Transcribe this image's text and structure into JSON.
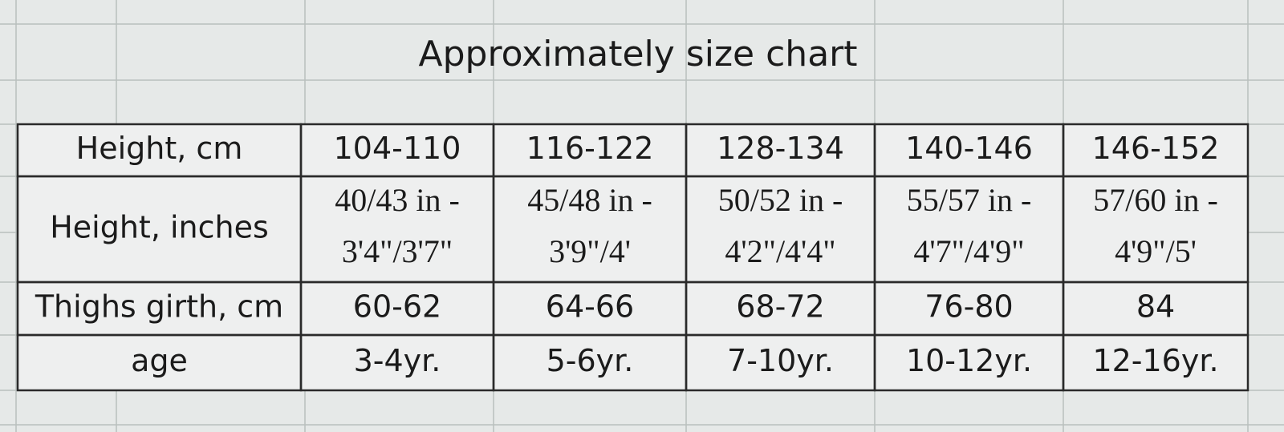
{
  "title": "Approximately size chart",
  "table": {
    "rows": [
      {
        "label": "Height, cm",
        "cells": [
          "104-110",
          "116-122",
          "128-134",
          "140-146",
          "146-152"
        ]
      },
      {
        "label": "Height, inches",
        "cells": [
          [
            "40/43 in -",
            "3'4\"/3'7\""
          ],
          [
            "45/48 in -",
            "3'9\"/4'"
          ],
          [
            "50/52 in -",
            "4'2\"/4'4\""
          ],
          [
            "55/57 in -",
            "4'7\"/4'9\""
          ],
          [
            "57/60 in -",
            "4'9\"/5'"
          ]
        ]
      },
      {
        "label": "Thighs girth, cm",
        "cells": [
          "60-62",
          "64-66",
          "68-72",
          "76-80",
          "84"
        ]
      },
      {
        "label": "age",
        "cells": [
          "3-4yr.",
          "5-6yr.",
          "7-10yr.",
          "10-12yr.",
          "12-16yr."
        ]
      }
    ]
  }
}
